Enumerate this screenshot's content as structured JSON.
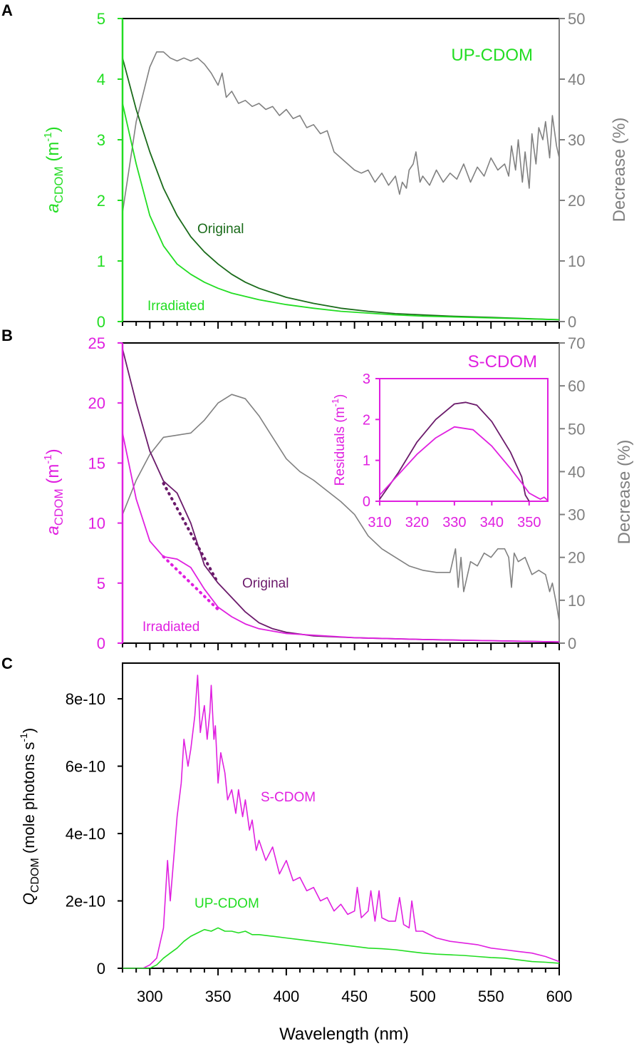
{
  "colors": {
    "green": "#22dd22",
    "dark_green": "#1a6b1a",
    "gray": "#808080",
    "magenta": "#e020e0",
    "purple": "#6b1a6b",
    "black": "#000000"
  },
  "chart_data": [
    {
      "panel": "A",
      "type": "line",
      "annotation": "UP-CDOM",
      "xlim": [
        280,
        600
      ],
      "ylim": [
        0,
        5
      ],
      "y2lim": [
        0,
        50
      ],
      "yticks": [
        0,
        1,
        2,
        3,
        4,
        5
      ],
      "y2ticks": [
        0,
        10,
        20,
        30,
        40,
        50
      ],
      "ylabel": {
        "main": "a",
        "sub": "CDOM",
        "unit_open": " (m",
        "sup": "-1",
        "unit_close": ")"
      },
      "y2label": "Decrease (%)",
      "series": [
        {
          "name": "Original",
          "axis": "left",
          "color": "dark_green",
          "x": [
            280,
            290,
            300,
            310,
            320,
            330,
            340,
            350,
            360,
            370,
            380,
            400,
            420,
            440,
            460,
            480,
            500,
            520,
            550,
            600
          ],
          "y": [
            4.35,
            3.5,
            2.8,
            2.2,
            1.75,
            1.4,
            1.15,
            0.95,
            0.78,
            0.65,
            0.55,
            0.4,
            0.3,
            0.22,
            0.17,
            0.13,
            0.11,
            0.09,
            0.07,
            0.03
          ]
        },
        {
          "name": "Irradiated",
          "axis": "left",
          "color": "green",
          "x": [
            280,
            290,
            300,
            310,
            320,
            330,
            340,
            350,
            360,
            380,
            400,
            420,
            440,
            460,
            480,
            500,
            550,
            600
          ],
          "y": [
            3.6,
            2.6,
            1.75,
            1.25,
            0.95,
            0.78,
            0.65,
            0.55,
            0.47,
            0.36,
            0.28,
            0.22,
            0.17,
            0.14,
            0.11,
            0.09,
            0.06,
            0.03
          ]
        },
        {
          "name": "Decrease",
          "axis": "right",
          "color": "gray",
          "x": [
            280,
            290,
            300,
            305,
            310,
            315,
            320,
            325,
            330,
            335,
            340,
            345,
            350,
            353,
            356,
            360,
            365,
            370,
            375,
            380,
            385,
            390,
            395,
            400,
            405,
            410,
            415,
            420,
            425,
            430,
            435,
            440,
            445,
            450,
            455,
            460,
            465,
            470,
            475,
            480,
            483,
            485,
            488,
            490,
            493,
            495,
            498,
            500,
            505,
            510,
            515,
            520,
            525,
            530,
            535,
            540,
            545,
            550,
            555,
            560,
            563,
            565,
            568,
            570,
            573,
            575,
            578,
            580,
            583,
            585,
            588,
            590,
            593,
            595,
            598,
            600
          ],
          "y": [
            18,
            33,
            42,
            44.5,
            44.5,
            43.5,
            43,
            43.5,
            43,
            43.5,
            42.5,
            41,
            39,
            41,
            37,
            38,
            36,
            36.5,
            35.5,
            36,
            35,
            35.5,
            34,
            35,
            33.5,
            34,
            32,
            32.5,
            31,
            31.5,
            28,
            27,
            26,
            25,
            24.5,
            25,
            23,
            24.5,
            22.5,
            24,
            21,
            23,
            22,
            25,
            26,
            28,
            23,
            24,
            22.5,
            25,
            23,
            24.5,
            23.5,
            26,
            23,
            25.5,
            24,
            27,
            25,
            26,
            24,
            29,
            25,
            30,
            23,
            28,
            22,
            31,
            26,
            32,
            30,
            33,
            27,
            34,
            29,
            27
          ]
        }
      ],
      "labels": [
        "Original",
        "Irradiated"
      ]
    },
    {
      "panel": "B",
      "type": "line",
      "annotation": "S-CDOM",
      "xlim": [
        280,
        600
      ],
      "ylim": [
        0,
        25
      ],
      "y2lim": [
        0,
        70
      ],
      "yticks": [
        0,
        5,
        10,
        15,
        20,
        25
      ],
      "y2ticks": [
        0,
        10,
        20,
        30,
        40,
        50,
        60,
        70
      ],
      "ylabel": {
        "main": "a",
        "sub": "CDOM",
        "unit_open": " (m",
        "sup": "-1",
        "unit_close": ")"
      },
      "y2label": "Decrease (%)",
      "series": [
        {
          "name": "Original",
          "axis": "left",
          "color": "purple",
          "x": [
            280,
            290,
            300,
            310,
            320,
            330,
            340,
            350,
            360,
            370,
            380,
            390,
            400,
            420,
            450,
            500,
            550,
            600
          ],
          "y": [
            24.5,
            20,
            16,
            13.5,
            12.5,
            10,
            6.5,
            5,
            3.8,
            2.6,
            1.7,
            1.2,
            0.9,
            0.6,
            0.45,
            0.3,
            0.2,
            0.1
          ]
        },
        {
          "name": "Irradiated",
          "axis": "left",
          "color": "magenta",
          "x": [
            280,
            290,
            300,
            310,
            320,
            330,
            340,
            350,
            360,
            370,
            380,
            400,
            450,
            500,
            600
          ],
          "y": [
            17.5,
            12,
            8.5,
            7.2,
            7,
            6.3,
            4.5,
            3,
            2.2,
            1.6,
            1.2,
            0.8,
            0.45,
            0.3,
            0.1
          ]
        },
        {
          "name": "Original fit",
          "axis": "left",
          "color": "purple",
          "dotted": true,
          "x": [
            310,
            350
          ],
          "y": [
            13.3,
            5
          ]
        },
        {
          "name": "Irradiated fit",
          "axis": "left",
          "color": "magenta",
          "dotted": true,
          "x": [
            310,
            350
          ],
          "y": [
            7.2,
            2.8
          ]
        },
        {
          "name": "Decrease",
          "axis": "right",
          "color": "gray",
          "x": [
            280,
            290,
            300,
            310,
            320,
            330,
            340,
            350,
            360,
            370,
            380,
            390,
            400,
            410,
            420,
            430,
            440,
            450,
            460,
            470,
            480,
            490,
            500,
            510,
            520,
            524,
            526,
            528,
            530,
            535,
            540,
            545,
            550,
            555,
            560,
            563,
            565,
            567,
            570,
            575,
            580,
            585,
            590,
            593,
            595,
            598,
            600
          ],
          "y": [
            30,
            38,
            44,
            48,
            48.5,
            49,
            52,
            56,
            58,
            57,
            53,
            48,
            43,
            40,
            38,
            35.5,
            33,
            30,
            25,
            22,
            20,
            18,
            17,
            16.5,
            16.5,
            22,
            13,
            20,
            12,
            19,
            18,
            21,
            20,
            22,
            22,
            20,
            13,
            21,
            19,
            20,
            16,
            17,
            16,
            12,
            14,
            9,
            5
          ]
        }
      ],
      "labels": [
        "Original",
        "Irradiated"
      ],
      "inset": {
        "xlim": [
          310,
          355
        ],
        "ylim": [
          0,
          3
        ],
        "xticks": [
          310,
          320,
          330,
          340,
          350
        ],
        "yticks": [
          0,
          1,
          2,
          3
        ],
        "ylabel": {
          "main": "Residuals (m",
          "sup": "-1",
          "close": ")"
        },
        "series": [
          {
            "name": "Original",
            "color": "purple",
            "x": [
              310,
              315,
              320,
              325,
              330,
              333,
              336,
              340,
              345,
              348,
              349,
              350
            ],
            "y": [
              0.05,
              0.7,
              1.45,
              2.0,
              2.38,
              2.42,
              2.35,
              1.95,
              1.2,
              0.6,
              0.15,
              0
            ]
          },
          {
            "name": "Irradiated",
            "color": "magenta",
            "x": [
              310,
              315,
              320,
              325,
              330,
              335,
              340,
              345,
              348,
              350,
              352,
              353,
              354,
              355
            ],
            "y": [
              0.15,
              0.65,
              1.15,
              1.55,
              1.82,
              1.75,
              1.35,
              0.8,
              0.45,
              0.2,
              0.1,
              0.05,
              0.1,
              0.02
            ]
          }
        ]
      }
    },
    {
      "panel": "C",
      "type": "line",
      "xlim": [
        280,
        600
      ],
      "ylim": [
        0,
        9.06e-10
      ],
      "xticks": [
        300,
        350,
        400,
        450,
        500,
        550,
        600
      ],
      "yticks": [
        0,
        2e-10,
        4e-10,
        6e-10,
        8e-10
      ],
      "ytick_labels": [
        "0",
        "2e-10",
        "4e-10",
        "6e-10",
        "8e-10"
      ],
      "xlabel": "Wavelength (nm)",
      "ylabel": {
        "main": "Q",
        "sub": "CDOM",
        "unit_open": " (mole photons s",
        "sup": "-1",
        "unit_close": ")"
      },
      "series": [
        {
          "name": "S-CDOM",
          "color": "magenta",
          "x": [
            280,
            295,
            300,
            305,
            310,
            313,
            315,
            318,
            320,
            323,
            325,
            328,
            330,
            333,
            335,
            337,
            338,
            340,
            342,
            344,
            345,
            347,
            348,
            350,
            352,
            355,
            357,
            360,
            363,
            365,
            368,
            370,
            373,
            375,
            378,
            380,
            385,
            390,
            395,
            400,
            405,
            410,
            415,
            420,
            425,
            430,
            435,
            440,
            445,
            450,
            452,
            455,
            460,
            462,
            465,
            468,
            470,
            475,
            480,
            483,
            486,
            490,
            492,
            495,
            500,
            510,
            520,
            530,
            540,
            550,
            560,
            570,
            580,
            590,
            600
          ],
          "y": [
            0,
            0,
            1e-11,
            3e-11,
            1.2e-10,
            3.2e-10,
            2e-10,
            3.5e-10,
            4.5e-10,
            5.5e-10,
            6.8e-10,
            6e-10,
            6.5e-10,
            7.5e-10,
            8.7e-10,
            7e-10,
            7.3e-10,
            7.8e-10,
            6.8e-10,
            7.6e-10,
            8.4e-10,
            6.8e-10,
            7.2e-10,
            5.5e-10,
            6.4e-10,
            5.8e-10,
            5e-10,
            5.3e-10,
            4.6e-10,
            5.3e-10,
            4.5e-10,
            5e-10,
            4.1e-10,
            4.4e-10,
            3.5e-10,
            3.8e-10,
            3.2e-10,
            3.6e-10,
            2.8e-10,
            3.2e-10,
            2.6e-10,
            2.7e-10,
            2.3e-10,
            2.4e-10,
            2e-10,
            2.1e-10,
            1.7e-10,
            1.9e-10,
            1.6e-10,
            1.7e-10,
            2.4e-10,
            1.5e-10,
            1.7e-10,
            2.3e-10,
            1.4e-10,
            2.3e-10,
            1.5e-10,
            1.4e-10,
            1.4e-10,
            2.1e-10,
            1.3e-10,
            1.2e-10,
            2e-10,
            1.1e-10,
            1.1e-10,
            9e-11,
            8e-11,
            7.5e-11,
            7e-11,
            6e-11,
            5.5e-11,
            5e-11,
            4.5e-11,
            3.5e-11,
            2e-11
          ]
        },
        {
          "name": "UP-CDOM",
          "color": "green",
          "x": [
            280,
            300,
            305,
            310,
            315,
            320,
            325,
            330,
            335,
            340,
            345,
            350,
            355,
            360,
            365,
            370,
            375,
            380,
            390,
            400,
            410,
            420,
            430,
            440,
            450,
            460,
            470,
            480,
            490,
            500,
            510,
            520,
            530,
            540,
            550,
            560,
            570,
            580,
            590,
            600
          ],
          "y": [
            0,
            0,
            1e-11,
            3e-11,
            4.5e-11,
            6e-11,
            8e-11,
            9.5e-11,
            1.05e-10,
            1.15e-10,
            1.1e-10,
            1.2e-10,
            1.1e-10,
            1.1e-10,
            1.05e-10,
            1.1e-10,
            1e-10,
            1e-10,
            9.5e-11,
            9e-11,
            8.5e-11,
            8e-11,
            7.5e-11,
            7e-11,
            6.5e-11,
            6e-11,
            5.8e-11,
            5.5e-11,
            5e-11,
            4.5e-11,
            4.2e-11,
            4e-11,
            3.8e-11,
            3.5e-11,
            3.2e-11,
            3e-11,
            2.5e-11,
            2e-11,
            1.8e-11,
            1.5e-11
          ]
        }
      ],
      "labels": [
        "S-CDOM",
        "UP-CDOM"
      ]
    }
  ],
  "panel_labels": [
    "A",
    "B",
    "C"
  ]
}
